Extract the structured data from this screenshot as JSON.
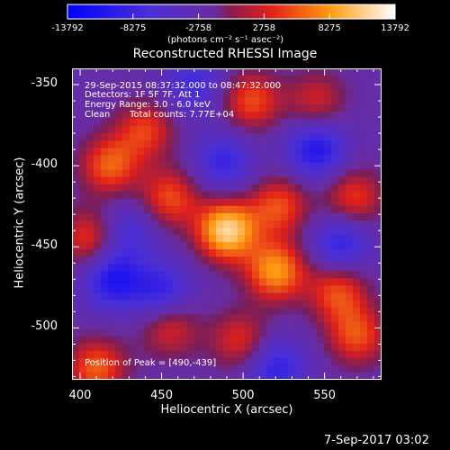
{
  "colorbar": {
    "tick_labels": [
      "-13792",
      "-8275",
      "-2758",
      "2758",
      "8275",
      "13792"
    ],
    "units_label": "(photons cm⁻² s⁻¹ asec⁻²)"
  },
  "chart_data": {
    "type": "heatmap",
    "title": "Reconstructed RHESSI Image",
    "xlabel": "Heliocentric X (arcsec)",
    "ylabel": "Heliocentric Y (arcsec)",
    "xlim": [
      395,
      585
    ],
    "ylim": [
      -532,
      -340
    ],
    "x_ticks": [
      400,
      450,
      500,
      550
    ],
    "y_ticks": [
      -350,
      -400,
      -450,
      -500
    ],
    "colorbar_range": [
      -13792,
      13792
    ],
    "colorbar_ticks": [
      -13792,
      -8275,
      -2758,
      2758,
      8275,
      13792
    ],
    "peak": [
      490,
      -439
    ],
    "annotations": {
      "time": "29-Sep-2015 08:37:32.000 to 08:47:32.000",
      "detectors": "Detectors: 1F 5F 7F, Att 1",
      "energy": "Energy Range: 3.0 - 6.0 keV",
      "clean": "Clean",
      "counts": "Total counts: 7.77E+04",
      "peak_text": "Position of Peak = [490,-439]"
    },
    "sources": [
      {
        "x": 490,
        "y": -440,
        "amp": 1.0
      },
      {
        "x": 520,
        "y": -465,
        "amp": 0.78
      },
      {
        "x": 522,
        "y": -425,
        "amp": 0.55
      },
      {
        "x": 455,
        "y": -420,
        "amp": 0.55
      },
      {
        "x": 418,
        "y": -400,
        "amp": 0.6
      },
      {
        "x": 440,
        "y": -378,
        "amp": 0.5
      },
      {
        "x": 505,
        "y": -360,
        "amp": 0.55
      },
      {
        "x": 545,
        "y": -360,
        "amp": 0.4
      },
      {
        "x": 568,
        "y": -420,
        "amp": 0.5
      },
      {
        "x": 558,
        "y": -478,
        "amp": 0.55
      },
      {
        "x": 570,
        "y": -505,
        "amp": 0.55
      },
      {
        "x": 455,
        "y": -500,
        "amp": 0.45
      },
      {
        "x": 498,
        "y": -508,
        "amp": 0.45
      },
      {
        "x": 405,
        "y": -445,
        "amp": 0.5
      },
      {
        "x": 410,
        "y": -525,
        "amp": 0.6
      },
      {
        "x": 488,
        "y": -398,
        "amp": -0.45
      },
      {
        "x": 545,
        "y": -390,
        "amp": -0.6
      },
      {
        "x": 560,
        "y": -448,
        "amp": -0.5
      },
      {
        "x": 420,
        "y": -470,
        "amp": -0.6
      },
      {
        "x": 450,
        "y": -478,
        "amp": -0.5
      },
      {
        "x": 520,
        "y": -525,
        "amp": -0.5
      },
      {
        "x": 470,
        "y": -350,
        "amp": -0.4
      },
      {
        "x": 430,
        "y": -440,
        "amp": -0.35
      }
    ]
  },
  "footer": {
    "date": "7-Sep-2017 03:02"
  }
}
